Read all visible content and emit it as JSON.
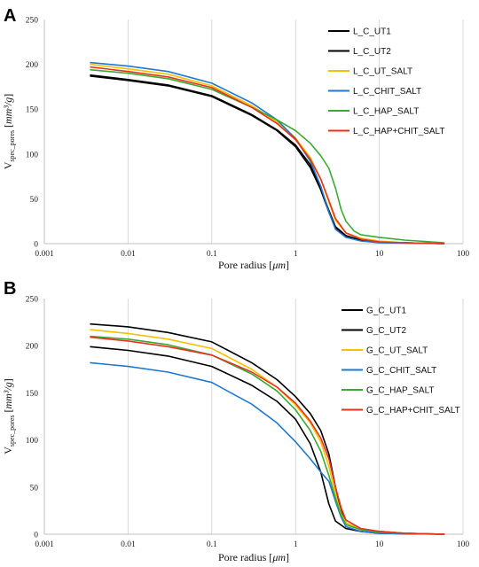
{
  "chart_data": [
    {
      "panel": "A",
      "type": "line",
      "xscale": "log",
      "xlim": [
        0.001,
        100
      ],
      "ylim": [
        0,
        250
      ],
      "x_ticks": [
        "0.001",
        "0.01",
        "0.1",
        "1",
        "10",
        "100"
      ],
      "y_ticks": [
        "0",
        "50",
        "100",
        "150",
        "200",
        "250"
      ],
      "xlabel_main": "Pore radius [",
      "xlabel_unit": "μm",
      "xlabel_end": "]",
      "ylabel_main": "V",
      "ylabel_sub": "spec_pores",
      "ylabel_unit_prefix": " [",
      "ylabel_unit": "mm³/g",
      "ylabel_unit_suffix": "]",
      "grid": "vertical",
      "legend": "top-right",
      "series": [
        {
          "name": "L_C_UT1",
          "color": "#000000",
          "points": [
            [
              0.0035,
              187
            ],
            [
              0.01,
              182
            ],
            [
              0.03,
              176
            ],
            [
              0.1,
              164
            ],
            [
              0.3,
              143
            ],
            [
              0.6,
              126
            ],
            [
              1,
              108
            ],
            [
              1.5,
              85
            ],
            [
              2,
              60
            ],
            [
              2.5,
              35
            ],
            [
              3,
              18
            ],
            [
              4,
              8
            ],
            [
              6,
              4
            ],
            [
              10,
              2
            ],
            [
              20,
              1
            ],
            [
              60,
              0
            ]
          ]
        },
        {
          "name": "L_C_UT2",
          "color": "#000000",
          "points": [
            [
              0.0035,
              188
            ],
            [
              0.01,
              183
            ],
            [
              0.03,
              177
            ],
            [
              0.1,
              165
            ],
            [
              0.3,
              144
            ],
            [
              0.6,
              127
            ],
            [
              1,
              110
            ],
            [
              1.5,
              88
            ],
            [
              2,
              62
            ],
            [
              2.5,
              37
            ],
            [
              3,
              19
            ],
            [
              4,
              9
            ],
            [
              6,
              4
            ],
            [
              10,
              2
            ],
            [
              20,
              1
            ],
            [
              60,
              0
            ]
          ]
        },
        {
          "name": "L_C_UT_SALT",
          "color": "#f5c000",
          "points": [
            [
              0.0035,
              200
            ],
            [
              0.01,
              195
            ],
            [
              0.03,
              189
            ],
            [
              0.1,
              176
            ],
            [
              0.3,
              154
            ],
            [
              0.6,
              136
            ],
            [
              1,
              118
            ],
            [
              1.5,
              96
            ],
            [
              2,
              72
            ],
            [
              2.5,
              46
            ],
            [
              3,
              26
            ],
            [
              4,
              12
            ],
            [
              6,
              6
            ],
            [
              10,
              3
            ],
            [
              20,
              1
            ],
            [
              60,
              0
            ]
          ]
        },
        {
          "name": "L_C_CHIT_SALT",
          "color": "#1f78d1",
          "points": [
            [
              0.0035,
              202
            ],
            [
              0.01,
              198
            ],
            [
              0.03,
              192
            ],
            [
              0.1,
              179
            ],
            [
              0.3,
              157
            ],
            [
              0.6,
              138
            ],
            [
              1,
              117
            ],
            [
              1.5,
              92
            ],
            [
              2,
              64
            ],
            [
              2.5,
              35
            ],
            [
              3,
              16
            ],
            [
              4,
              7
            ],
            [
              6,
              3
            ],
            [
              10,
              1
            ],
            [
              20,
              0.5
            ],
            [
              60,
              0
            ]
          ]
        },
        {
          "name": "L_C_HAP_SALT",
          "color": "#3aaa35",
          "points": [
            [
              0.0035,
              194
            ],
            [
              0.01,
              190
            ],
            [
              0.03,
              184
            ],
            [
              0.1,
              172
            ],
            [
              0.3,
              152
            ],
            [
              0.6,
              138
            ],
            [
              1,
              126
            ],
            [
              1.5,
              112
            ],
            [
              2,
              98
            ],
            [
              2.5,
              84
            ],
            [
              3,
              62
            ],
            [
              3.5,
              38
            ],
            [
              4,
              25
            ],
            [
              5,
              14
            ],
            [
              6,
              10
            ],
            [
              10,
              7
            ],
            [
              20,
              4
            ],
            [
              60,
              1
            ]
          ]
        },
        {
          "name": "L_C_HAP+CHIT_SALT",
          "color": "#e8321e",
          "points": [
            [
              0.0035,
              197
            ],
            [
              0.01,
              192
            ],
            [
              0.03,
              186
            ],
            [
              0.1,
              174
            ],
            [
              0.3,
              152
            ],
            [
              0.6,
              134
            ],
            [
              1,
              116
            ],
            [
              1.5,
              94
            ],
            [
              2,
              72
            ],
            [
              2.5,
              48
            ],
            [
              3,
              28
            ],
            [
              4,
              12
            ],
            [
              6,
              5
            ],
            [
              10,
              2
            ],
            [
              20,
              1
            ],
            [
              60,
              0
            ]
          ]
        }
      ]
    },
    {
      "panel": "B",
      "type": "line",
      "xscale": "log",
      "xlim": [
        0.001,
        100
      ],
      "ylim": [
        0,
        250
      ],
      "x_ticks": [
        "0.001",
        "0.01",
        "0.1",
        "1",
        "10",
        "100"
      ],
      "y_ticks": [
        "0",
        "50",
        "100",
        "150",
        "200",
        "250"
      ],
      "xlabel_main": "Pore radius [",
      "xlabel_unit": "μm",
      "xlabel_end": "]",
      "ylabel_main": "V",
      "ylabel_sub": "spec_pores",
      "ylabel_unit_prefix": " [",
      "ylabel_unit": "mm³/g",
      "ylabel_unit_suffix": "]",
      "grid": "vertical",
      "legend": "top-right",
      "series": [
        {
          "name": "G_C_UT1",
          "color": "#000000",
          "points": [
            [
              0.0035,
              223
            ],
            [
              0.01,
              220
            ],
            [
              0.03,
              214
            ],
            [
              0.1,
              204
            ],
            [
              0.3,
              182
            ],
            [
              0.6,
              164
            ],
            [
              1,
              146
            ],
            [
              1.5,
              128
            ],
            [
              2,
              110
            ],
            [
              2.5,
              85
            ],
            [
              3,
              50
            ],
            [
              3.5,
              25
            ],
            [
              4,
              12
            ],
            [
              6,
              5
            ],
            [
              10,
              3
            ],
            [
              20,
              1
            ],
            [
              60,
              0
            ]
          ]
        },
        {
          "name": "G_C_UT2",
          "color": "#000000",
          "points": [
            [
              0.0035,
              199
            ],
            [
              0.01,
              195
            ],
            [
              0.03,
              189
            ],
            [
              0.1,
              178
            ],
            [
              0.3,
              158
            ],
            [
              0.6,
              141
            ],
            [
              1,
              122
            ],
            [
              1.5,
              96
            ],
            [
              2,
              66
            ],
            [
              2.5,
              32
            ],
            [
              3,
              14
            ],
            [
              4,
              6
            ],
            [
              6,
              3
            ],
            [
              10,
              1
            ],
            [
              20,
              0.5
            ],
            [
              60,
              0
            ]
          ]
        },
        {
          "name": "G_C_UT_SALT",
          "color": "#f5c000",
          "points": [
            [
              0.0035,
              217
            ],
            [
              0.01,
              213
            ],
            [
              0.03,
              207
            ],
            [
              0.1,
              197
            ],
            [
              0.3,
              175
            ],
            [
              0.6,
              156
            ],
            [
              1,
              137
            ],
            [
              1.5,
              118
            ],
            [
              2,
              98
            ],
            [
              2.5,
              72
            ],
            [
              3,
              42
            ],
            [
              3.5,
              22
            ],
            [
              4,
              12
            ],
            [
              6,
              5
            ],
            [
              10,
              3
            ],
            [
              20,
              1
            ],
            [
              60,
              0
            ]
          ]
        },
        {
          "name": "G_C_CHIT_SALT",
          "color": "#1f78d1",
          "points": [
            [
              0.0035,
              182
            ],
            [
              0.01,
              178
            ],
            [
              0.03,
              172
            ],
            [
              0.1,
              161
            ],
            [
              0.3,
              138
            ],
            [
              0.6,
              118
            ],
            [
              1,
              98
            ],
            [
              1.5,
              80
            ],
            [
              2,
              66
            ],
            [
              2.5,
              56
            ],
            [
              3,
              35
            ],
            [
              3.5,
              18
            ],
            [
              4,
              8
            ],
            [
              6,
              3
            ],
            [
              10,
              1
            ],
            [
              20,
              0.5
            ],
            [
              60,
              0
            ]
          ]
        },
        {
          "name": "G_C_HAP_SALT",
          "color": "#3aaa35",
          "points": [
            [
              0.0035,
              210
            ],
            [
              0.01,
              207
            ],
            [
              0.03,
              201
            ],
            [
              0.1,
              190
            ],
            [
              0.3,
              170
            ],
            [
              0.6,
              152
            ],
            [
              1,
              132
            ],
            [
              1.5,
              110
            ],
            [
              2,
              88
            ],
            [
              2.5,
              62
            ],
            [
              3,
              38
            ],
            [
              3.5,
              20
            ],
            [
              4,
              10
            ],
            [
              6,
              5
            ],
            [
              10,
              2
            ],
            [
              20,
              1
            ],
            [
              60,
              0
            ]
          ]
        },
        {
          "name": "G_C_HAP+CHIT_SALT",
          "color": "#e8321e",
          "points": [
            [
              0.0035,
              209
            ],
            [
              0.01,
              205
            ],
            [
              0.03,
              199
            ],
            [
              0.1,
              190
            ],
            [
              0.3,
              172
            ],
            [
              0.6,
              156
            ],
            [
              1,
              139
            ],
            [
              1.5,
              120
            ],
            [
              2,
              102
            ],
            [
              2.5,
              80
            ],
            [
              3,
              50
            ],
            [
              3.5,
              28
            ],
            [
              4,
              15
            ],
            [
              6,
              6
            ],
            [
              10,
              3
            ],
            [
              20,
              1
            ],
            [
              60,
              0
            ]
          ]
        }
      ]
    }
  ]
}
